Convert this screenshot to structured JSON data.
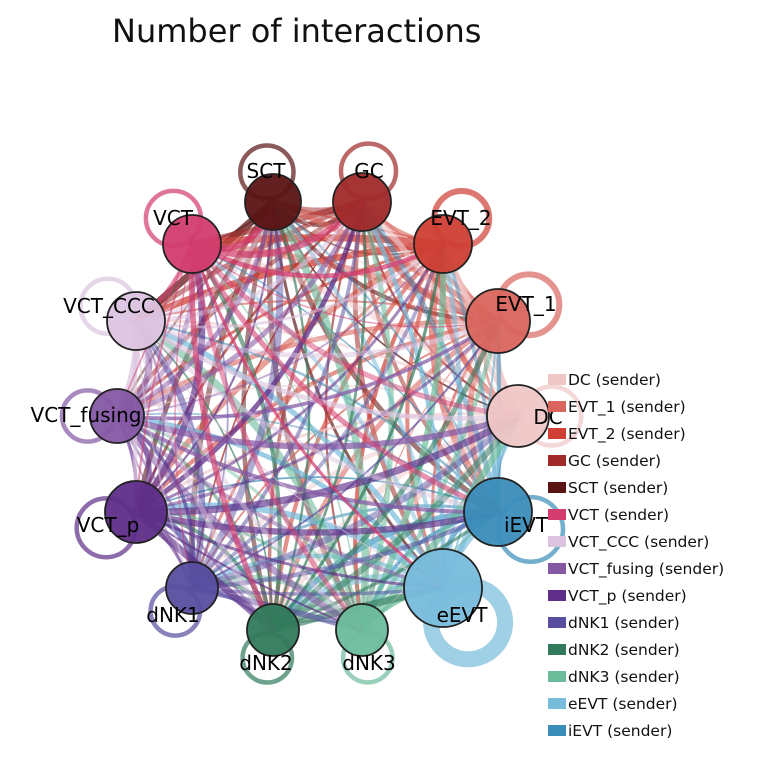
{
  "title": "Number of interactions",
  "nodes": [
    {
      "id": "SCT",
      "label": "SCT",
      "color": "#5a1414"
    },
    {
      "id": "GC",
      "label": "GC",
      "color": "#a02a2a"
    },
    {
      "id": "EVT_2",
      "label": "EVT_2",
      "color": "#cf3f34"
    },
    {
      "id": "EVT_1",
      "label": "EVT_1",
      "color": "#d9655e"
    },
    {
      "id": "DC",
      "label": "DC",
      "color": "#efc6c6"
    },
    {
      "id": "iEVT",
      "label": "iEVT",
      "color": "#3b8db9"
    },
    {
      "id": "eEVT",
      "label": "eEVT",
      "color": "#78bcdc"
    },
    {
      "id": "dNK3",
      "label": "dNK3",
      "color": "#6cbc9c"
    },
    {
      "id": "dNK2",
      "label": "dNK2",
      "color": "#327a5c"
    },
    {
      "id": "dNK1",
      "label": "dNK1",
      "color": "#574ea0"
    },
    {
      "id": "VCT_p",
      "label": "VCT_p",
      "color": "#5e2e88"
    },
    {
      "id": "VCT_fusing",
      "label": "VCT_fusing",
      "color": "#8558a4"
    },
    {
      "id": "VCT_CCC",
      "label": "VCT_CCC",
      "color": "#dcc4e0"
    },
    {
      "id": "VCT",
      "label": "VCT",
      "color": "#d23c6e"
    }
  ],
  "legend": [
    {
      "label": "DC (sender)",
      "color": "#efc6c6"
    },
    {
      "label": "EVT_1 (sender)",
      "color": "#d9655e"
    },
    {
      "label": "EVT_2 (sender)",
      "color": "#cf3f34"
    },
    {
      "label": "GC (sender)",
      "color": "#a02a2a"
    },
    {
      "label": "SCT (sender)",
      "color": "#5a1414"
    },
    {
      "label": "VCT (sender)",
      "color": "#d23c6e"
    },
    {
      "label": "VCT_CCC (sender)",
      "color": "#dcc4e0"
    },
    {
      "label": "VCT_fusing (sender)",
      "color": "#8558a4"
    },
    {
      "label": "VCT_p (sender)",
      "color": "#5e2e88"
    },
    {
      "label": "dNK1 (sender)",
      "color": "#574ea0"
    },
    {
      "label": "dNK2 (sender)",
      "color": "#327a5c"
    },
    {
      "label": "dNK3 (sender)",
      "color": "#6cbc9c"
    },
    {
      "label": "eEVT (sender)",
      "color": "#78bcdc"
    },
    {
      "label": "iEVT (sender)",
      "color": "#3b8db9"
    }
  ]
}
